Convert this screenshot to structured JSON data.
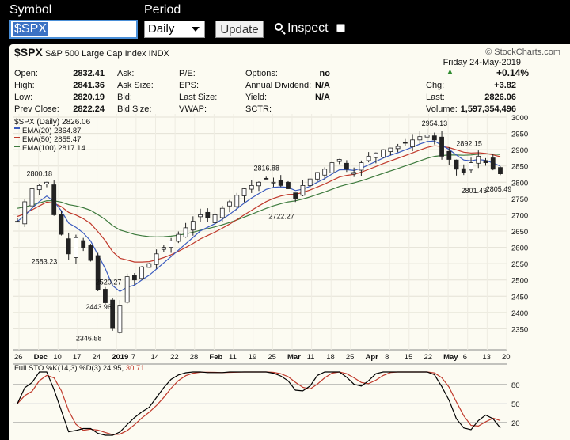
{
  "toolbar": {
    "symbol_label": "Symbol",
    "symbol_value": "$SPX",
    "period_label": "Period",
    "period_value": "Daily",
    "update_label": "Update",
    "inspect_label": "Inspect"
  },
  "header": {
    "symbol": "$SPX",
    "name": "S&P 500 Large Cap Index",
    "exchange": "INDX",
    "brand": "© StockCharts.com",
    "date": "Friday  24-May-2019",
    "change_pct": "+0.14%",
    "rows": [
      {
        "k1": "Open:",
        "v1": "2832.41",
        "k2": "Ask:",
        "k3": "P/E:",
        "k4": "Options:",
        "v4": "no",
        "k5": "",
        "v5": ""
      },
      {
        "k1": "High:",
        "v1": "2841.36",
        "k2": "Ask Size:",
        "k3": "EPS:",
        "k4": "Annual Dividend:",
        "v4": "N/A",
        "k5": "Chg:",
        "v5": "+3.82"
      },
      {
        "k1": "Low:",
        "v1": "2820.19",
        "k2": "Bid:",
        "k3": "Last Size:",
        "k4": "Yield:",
        "v4": "N/A",
        "k5": "Last:",
        "v5": "2826.06"
      },
      {
        "k1": "Prev Close:",
        "v1": "2822.24",
        "k2": "Bid Size:",
        "k3": "VWAP:",
        "k4": "SCTR:",
        "v4": "",
        "k5": "Volume:",
        "v5": "1,597,354,496"
      }
    ],
    "colors": {
      "up": "#2e8b2e",
      "ema20": "#3a5bbf",
      "ema50": "#c0392b",
      "ema100": "#3d7a3d",
      "sto_k": "#000000",
      "sto_d": "#c0392b"
    }
  },
  "legend": {
    "price": "$SPX (Daily) 2826.06",
    "ema20": "EMA(20) 2864.87",
    "ema50": "EMA(50) 2855.47",
    "ema100": "EMA(100) 2817.14",
    "sto_prefix": "Full STO %K(14,3) %D(3) 24.95,",
    "sto_d_value": "30.71"
  },
  "annotations": [
    {
      "text": "2800.18",
      "v": 2800
    },
    {
      "text": "2583.23",
      "v": 2583
    },
    {
      "text": "2520.27",
      "v": 2520
    },
    {
      "text": "2443.96",
      "v": 2444
    },
    {
      "text": "2346.58",
      "v": 2347
    },
    {
      "text": "2816.88",
      "v": 2817
    },
    {
      "text": "2722.27",
      "v": 2722
    },
    {
      "text": "2954.13",
      "v": 2954
    },
    {
      "text": "2892.15",
      "v": 2892
    },
    {
      "text": "2801.43",
      "v": 2801
    },
    {
      "text": "2805.49",
      "v": 2805
    }
  ],
  "chart_data": {
    "type": "candlestick",
    "price_ylim": [
      2300,
      3000
    ],
    "price_ticks": [
      "3000",
      "2950",
      "2900",
      "2850",
      "2800",
      "2750",
      "2700",
      "2650",
      "2600",
      "2550",
      "2500",
      "2450",
      "2400",
      "2350"
    ],
    "x_labels": [
      "26",
      "Dec",
      "10",
      "17",
      "24",
      "2019",
      "7",
      "14",
      "22",
      "28",
      "Feb",
      "11",
      "19",
      "25",
      "Mar",
      "11",
      "18",
      "25",
      "Apr",
      "8",
      "15",
      "22",
      "May",
      "6",
      "13",
      "20"
    ],
    "sto_ylim": [
      0,
      100
    ],
    "sto_ticks": [
      "80",
      "50",
      "20"
    ],
    "close_path": [
      2680,
      2740,
      2780,
      2790,
      2800,
      2700,
      2640,
      2580,
      2630,
      2600,
      2560,
      2470,
      2430,
      2351,
      2420,
      2510,
      2500,
      2540,
      2550,
      2580,
      2600,
      2620,
      2640,
      2660,
      2680,
      2700,
      2690,
      2700,
      2720,
      2740,
      2760,
      2780,
      2790,
      2800,
      2810,
      2800,
      2790,
      2780,
      2750,
      2790,
      2810,
      2830,
      2840,
      2860,
      2870,
      2840,
      2830,
      2860,
      2880,
      2890,
      2900,
      2905,
      2910,
      2920,
      2930,
      2940,
      2945,
      2930,
      2880,
      2870,
      2840,
      2830,
      2860,
      2880,
      2860,
      2840,
      2826
    ]
  }
}
